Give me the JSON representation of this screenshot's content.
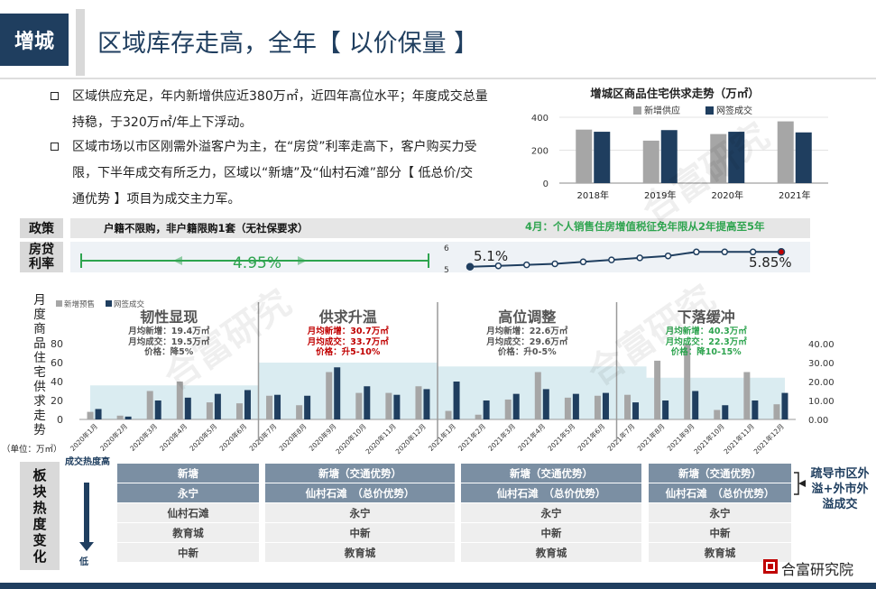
{
  "header": {
    "tag": "增城",
    "title": "区域库存走高，全年【 以价保量 】"
  },
  "bullets": [
    {
      "line1": "区域供应充足，年内新增供应近380万㎡，近四年高位水平；年度成交总量",
      "line2": "持稳，于320万㎡/年上下浮动。"
    },
    {
      "line1": "区域市场以市区刚需外溢客户为主，在“房贷”利率走高下，客户购买力受",
      "line2": "限，下半年成交有所乏力，区域以“新塘”及“仙村石滩”部分【 低总价/交",
      "line3": "通优势 】项目为成交主力军。"
    }
  ],
  "colors": {
    "navy": "#1f3e5f",
    "gray_bar": "#a6a6a6",
    "green": "#2ea44f",
    "red": "#c00000",
    "band": "#d6eaf0"
  },
  "chart_data": [
    {
      "type": "bar",
      "title": "增城区商品住宅供求走势（万㎡）",
      "categories": [
        "2018年",
        "2019年",
        "2020年",
        "2021年"
      ],
      "series": [
        {
          "name": "新增供应",
          "values": [
            325,
            258,
            298,
            375
          ]
        },
        {
          "name": "网签成交",
          "values": [
            312,
            322,
            312,
            308
          ]
        }
      ],
      "yticks": [
        "0",
        "200",
        "400"
      ],
      "ylim": [
        0,
        420
      ],
      "legend": "top"
    },
    {
      "type": "line",
      "categories": [
        "2021年1月",
        "2021年2月",
        "2021年3月",
        "2021年4月",
        "2021年5月",
        "2021年6月",
        "2021年7月",
        "2021年8月",
        "2021年9月",
        "2021年10月",
        "2021年11月",
        "2021年12月"
      ],
      "values": [
        5.1,
        5.15,
        5.2,
        5.25,
        5.35,
        5.45,
        5.55,
        5.65,
        5.85,
        5.85,
        5.85,
        5.85
      ],
      "yticks": [
        "5",
        "6"
      ],
      "ylim": [
        5,
        6
      ]
    },
    {
      "type": "bar",
      "categories": [
        "2020年1月",
        "2020年2月",
        "2020年3月",
        "2020年4月",
        "2020年5月",
        "2020年6月",
        "2020年7月",
        "2020年8月",
        "2020年9月",
        "2020年10月",
        "2020年11月",
        "2020年12月",
        "2021年1月",
        "2021年2月",
        "2021年3月",
        "2021年4月",
        "2021年5月",
        "2021年6月",
        "2021年7月",
        "2021年8月",
        "2021年9月",
        "2021年10月",
        "2021年11月",
        "2021年12月"
      ],
      "series": [
        {
          "name": "新增预售",
          "values": [
            8,
            4,
            30,
            40,
            18,
            17,
            25,
            15,
            50,
            28,
            28,
            35,
            9,
            5,
            21,
            50,
            23,
            25,
            26,
            62,
            80,
            10,
            50,
            16
          ]
        },
        {
          "name": "网签成交",
          "values": [
            11,
            3,
            20,
            23,
            27,
            31,
            26,
            25,
            55,
            35,
            26,
            32,
            40,
            20,
            27,
            32,
            27,
            28,
            18,
            20,
            30,
            15,
            20,
            28
          ]
        }
      ],
      "inventory_area": [
        18,
        18,
        18,
        18,
        18,
        18,
        30,
        30,
        30,
        30,
        30,
        30,
        28,
        28,
        28,
        28,
        28,
        28,
        28,
        22,
        22,
        22,
        22,
        22
      ],
      "yticks_left": [
        "0",
        "20",
        "40",
        "60",
        "80"
      ],
      "yticks_right": [
        "0.00",
        "10.00",
        "20.00",
        "30.00",
        "40.00"
      ],
      "ylim": [
        0,
        90
      ],
      "legend": "top-left"
    }
  ],
  "policy": {
    "label": "政策",
    "text_left": "户籍不限购，非户籍限购1套（无社保要求）",
    "text_right": "4月：个人销售住房增值税征免年限从2年提高至5年"
  },
  "loan": {
    "label1": "房贷",
    "label2": "利率",
    "rate_flat": "4.95%",
    "rate_start": "5.1%",
    "rate_end": "5.85%",
    "axis_top": "6",
    "axis_bottom": "5"
  },
  "main_chart": {
    "ylabel_chars": [
      "月",
      "度",
      "商",
      "品",
      "住",
      "宅",
      "供",
      "求",
      "走",
      "势"
    ],
    "unit": "（单位：万㎡）",
    "legend_a": "新增预售",
    "legend_b": "网签成交",
    "phases": [
      {
        "name": "韧性显现",
        "line1": "月均新增：19.4万㎡",
        "line2": "月均成交：19.5万㎡",
        "line3": "价格：降5%"
      },
      {
        "name": "供求升温",
        "line1": "月均新增：30.7万㎡",
        "line2": "月均成交：33.7万㎡",
        "line3": "价格：升5-10%"
      },
      {
        "name": "高位调整",
        "line1": "月均新增：22.6万㎡",
        "line2": "月均成交：29.6万㎡",
        "line3": "价格：升0-5%"
      },
      {
        "name": "下落缓冲",
        "line1": "月均新增：40.3万㎡",
        "line2": "月均成交：22.3万㎡",
        "line3": "价格：降10-15%"
      }
    ]
  },
  "heat": {
    "label": [
      "板",
      "块",
      "热",
      "度",
      "变",
      "化"
    ],
    "arrow_top": "成交热度高",
    "arrow_bottom": "低",
    "columns": [
      [
        "新塘",
        "永宁",
        "仙村石滩",
        "教育城",
        "中新"
      ],
      [
        "新塘（交通优势）",
        "仙村石滩　（总价优势）",
        "永宁",
        "中新",
        "教育城"
      ],
      [
        "新塘（交通优势）",
        "仙村石滩　（总价优势）",
        "永宁",
        "中新",
        "教育城"
      ],
      [
        "新塘（交通优势）",
        "仙村石滩　（总价优势）",
        "永宁",
        "中新",
        "教育城"
      ]
    ],
    "note_line1": "疏导市区外",
    "note_line2": "溢+外市外",
    "note_line3": "溢成交"
  },
  "footer": {
    "brand": "合富研究院",
    "watermark": "合富研究"
  }
}
